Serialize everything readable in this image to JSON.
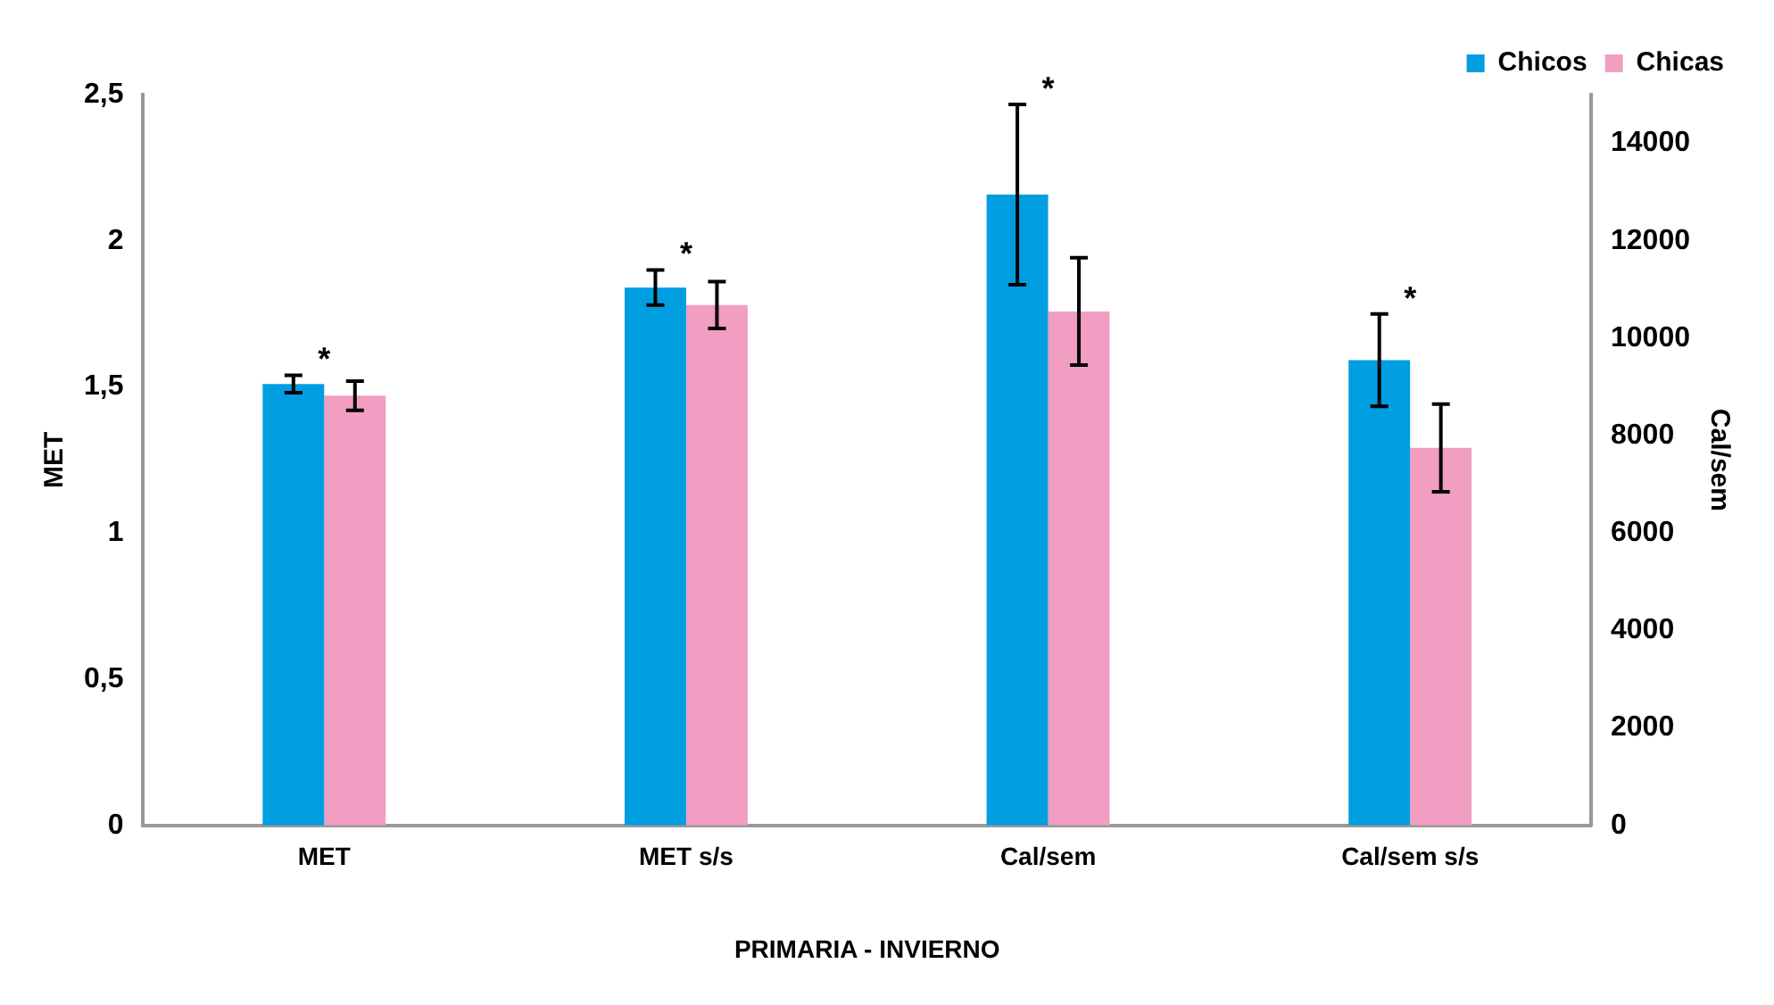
{
  "chart_data": {
    "type": "bar",
    "xlabel": "PRIMARIA - INVIERNO",
    "ylabel": "MET",
    "y2label": "Cal/sem",
    "categories": [
      "MET",
      "MET s/s",
      "Cal/sem",
      "Cal/sem s/s"
    ],
    "series": [
      {
        "name": "Chicos",
        "color": "#009ee0",
        "values": [
          1.51,
          1.84,
          null,
          null
        ],
        "errors": [
          0.03,
          0.06,
          null,
          null
        ]
      },
      {
        "name": "Chicas",
        "color": "#f19ec2",
        "values": [
          1.47,
          1.78,
          null,
          null
        ],
        "errors": [
          0.05,
          0.08,
          null,
          null
        ]
      },
      {
        "color": "#009ee0",
        "axis": "y2",
        "values": [
          null,
          null,
          12950,
          9550
        ],
        "errors": [
          null,
          null,
          1850,
          950
        ]
      },
      {
        "color": "#f19ec2",
        "axis": "y2",
        "values": [
          null,
          null,
          10550,
          7750
        ],
        "errors": [
          null,
          null,
          1100,
          900
        ]
      }
    ],
    "ylim": [
      0,
      2.5
    ],
    "yticks": [
      0,
      {
        "value": 0.5,
        "label": "0,5"
      },
      1,
      {
        "value": 1.5,
        "label": "1,5"
      },
      2,
      {
        "value": 2.5,
        "label": "2,5"
      }
    ],
    "y2lim": [
      0,
      15000
    ],
    "y2ticks": [
      0,
      2000,
      4000,
      6000,
      8000,
      10000,
      12000,
      14000
    ],
    "annotations": [
      "*",
      "*",
      "*",
      "*"
    ],
    "grid": false,
    "legend": "top right"
  }
}
